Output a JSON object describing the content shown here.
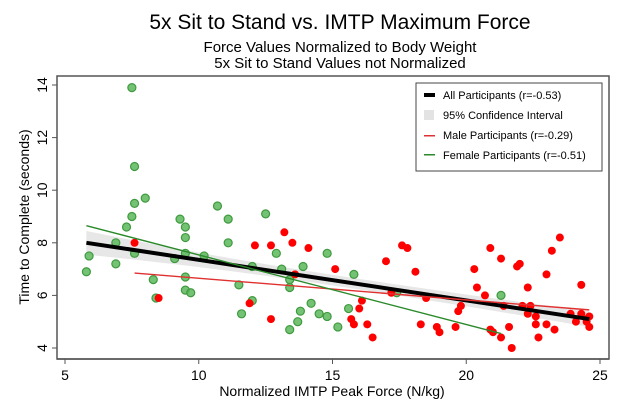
{
  "chart_data": {
    "type": "scatter",
    "title": "5x Sit to Stand vs. IMTP Maximum Force",
    "subtitle_lines": [
      "Force Values Normalized to Body Weight",
      "5x Sit to Stand Values not Normalized"
    ],
    "xlabel": "Normalized IMTP Peak Force (N/kg)",
    "ylabel": "Time to Complete (seconds)",
    "xlim": [
      4.7,
      25.3
    ],
    "ylim": [
      3.6,
      14.4
    ],
    "xticks": [
      5,
      10,
      15,
      20,
      25
    ],
    "yticks": [
      4,
      6,
      8,
      10,
      12,
      14
    ],
    "grid": false,
    "legend_position": "top-right",
    "legend": [
      {
        "label": "All Participants (r=-0.53)",
        "kind": "thick-line",
        "color": "#000000"
      },
      {
        "label": "95% Confidence Interval",
        "kind": "band",
        "color": "#e3e3e3"
      },
      {
        "label": "Male Participants (r=-0.29)",
        "kind": "line",
        "color": "#e03030"
      },
      {
        "label": "Female Participants (r=-0.51)",
        "kind": "line",
        "color": "#2a8a2a"
      }
    ],
    "series": [
      {
        "name": "Female Participants",
        "color": "#5cb85c",
        "points": [
          [
            5.8,
            6.9
          ],
          [
            5.9,
            7.5
          ],
          [
            6.9,
            7.2
          ],
          [
            6.9,
            8.0
          ],
          [
            7.3,
            8.6
          ],
          [
            7.5,
            9.0
          ],
          [
            7.6,
            7.6
          ],
          [
            7.6,
            9.5
          ],
          [
            7.6,
            10.9
          ],
          [
            7.5,
            13.9
          ],
          [
            8.0,
            9.7
          ],
          [
            8.3,
            6.6
          ],
          [
            8.4,
            5.9
          ],
          [
            9.1,
            7.4
          ],
          [
            9.3,
            8.9
          ],
          [
            9.5,
            7.6
          ],
          [
            9.5,
            8.2
          ],
          [
            9.5,
            8.6
          ],
          [
            9.5,
            6.7
          ],
          [
            9.5,
            6.2
          ],
          [
            9.7,
            6.1
          ],
          [
            10.2,
            7.5
          ],
          [
            10.7,
            9.4
          ],
          [
            11.1,
            8.0
          ],
          [
            11.1,
            8.9
          ],
          [
            11.5,
            6.4
          ],
          [
            11.6,
            5.3
          ],
          [
            12.0,
            5.8
          ],
          [
            12.0,
            7.1
          ],
          [
            12.5,
            9.1
          ],
          [
            12.9,
            7.6
          ],
          [
            13.1,
            7.0
          ],
          [
            13.4,
            6.6
          ],
          [
            13.4,
            4.7
          ],
          [
            13.4,
            6.3
          ],
          [
            13.7,
            5.0
          ],
          [
            13.8,
            5.4
          ],
          [
            13.9,
            7.1
          ],
          [
            14.2,
            5.7
          ],
          [
            14.5,
            5.3
          ],
          [
            14.8,
            5.2
          ],
          [
            15.2,
            4.8
          ],
          [
            14.8,
            7.6
          ],
          [
            15.6,
            5.5
          ],
          [
            15.8,
            6.8
          ],
          [
            17.4,
            6.1
          ],
          [
            21.3,
            6.0
          ]
        ]
      },
      {
        "name": "Male Participants",
        "color": "#ff0000",
        "points": [
          [
            7.6,
            8.0
          ],
          [
            8.5,
            5.9
          ],
          [
            11.9,
            5.7
          ],
          [
            12.1,
            7.9
          ],
          [
            13.2,
            8.4
          ],
          [
            13.6,
            6.8
          ],
          [
            14.1,
            7.8
          ],
          [
            12.7,
            5.1
          ],
          [
            12.7,
            7.9
          ],
          [
            13.5,
            8.0
          ],
          [
            15.1,
            7.0
          ],
          [
            15.7,
            5.1
          ],
          [
            15.8,
            4.9
          ],
          [
            16.0,
            5.5
          ],
          [
            16.1,
            5.8
          ],
          [
            16.3,
            4.9
          ],
          [
            16.5,
            4.4
          ],
          [
            17.0,
            7.3
          ],
          [
            17.6,
            7.9
          ],
          [
            17.8,
            7.8
          ],
          [
            17.2,
            6.1
          ],
          [
            18.1,
            6.9
          ],
          [
            18.3,
            4.9
          ],
          [
            18.5,
            5.9
          ],
          [
            18.9,
            4.8
          ],
          [
            19.0,
            4.6
          ],
          [
            19.6,
            4.8
          ],
          [
            19.7,
            5.4
          ],
          [
            19.8,
            5.6
          ],
          [
            20.3,
            7.0
          ],
          [
            20.4,
            6.3
          ],
          [
            20.7,
            6.0
          ],
          [
            20.9,
            4.7
          ],
          [
            20.9,
            7.8
          ],
          [
            21.3,
            7.4
          ],
          [
            21.9,
            7.1
          ],
          [
            22.0,
            7.2
          ],
          [
            23.0,
            6.8
          ],
          [
            23.2,
            7.7
          ],
          [
            23.5,
            8.2
          ],
          [
            21.4,
            5.6
          ],
          [
            22.1,
            5.6
          ],
          [
            22.3,
            5.3
          ],
          [
            22.6,
            5.2
          ],
          [
            22.3,
            6.3
          ],
          [
            22.4,
            5.6
          ],
          [
            23.0,
            4.9
          ],
          [
            23.9,
            5.3
          ],
          [
            24.1,
            5.0
          ],
          [
            24.3,
            6.4
          ],
          [
            24.5,
            5.0
          ],
          [
            24.3,
            5.3
          ],
          [
            21.7,
            4.0
          ],
          [
            21.3,
            4.4
          ],
          [
            22.7,
            4.4
          ],
          [
            21.0,
            4.6
          ],
          [
            21.6,
            4.8
          ],
          [
            23.3,
            4.7
          ],
          [
            24.6,
            4.8
          ],
          [
            24.5,
            5.1
          ],
          [
            24.6,
            5.2
          ],
          [
            22.6,
            4.9
          ]
        ]
      }
    ],
    "fit_lines": [
      {
        "name": "All Participants",
        "color": "#000000",
        "x": [
          5.8,
          24.6
        ],
        "y": [
          8.0,
          5.1
        ],
        "ci_halfwidth": [
          0.45,
          0.3
        ],
        "ci_mid_halfwidth": 0.2
      },
      {
        "name": "Male Participants",
        "color": "#e03030",
        "x": [
          7.6,
          24.6
        ],
        "y": [
          6.85,
          5.45
        ]
      },
      {
        "name": "Female Participants",
        "color": "#2a8a2a",
        "x": [
          5.8,
          21.3
        ],
        "y": [
          8.65,
          4.55
        ]
      }
    ]
  }
}
